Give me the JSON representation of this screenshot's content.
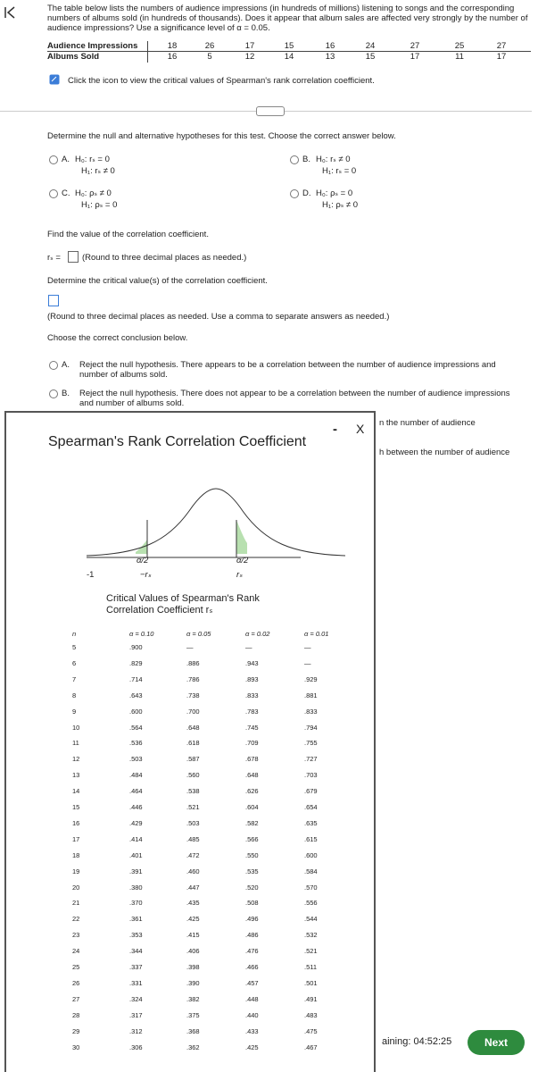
{
  "question": {
    "text": "The table below lists the numbers of audience impressions (in hundreds of millions) listening to songs and the corresponding numbers of albums sold (in hundreds of thousands). Does it appear that album sales are affected very strongly by the number of audience impressions? Use a significance level of α = 0.05.",
    "table": [
      {
        "label": "Audience Impressions",
        "values": [
          18,
          26,
          17,
          15,
          16,
          24,
          27,
          25,
          27
        ]
      },
      {
        "label": "Albums Sold",
        "values": [
          16,
          5,
          12,
          14,
          13,
          15,
          17,
          11,
          17
        ]
      }
    ],
    "icon_note": "Click the icon to view the critical values of Spearman's rank correlation coefficient."
  },
  "hypotheses": {
    "prompt": "Determine the null and alternative hypotheses for this test. Choose the correct answer below.",
    "options": [
      {
        "letter": "A.",
        "h0": "H₀: rₛ = 0",
        "h1": "H₁: rₛ ≠ 0"
      },
      {
        "letter": "B.",
        "h0": "H₀: rₛ ≠ 0",
        "h1": "H₁: rₛ = 0"
      },
      {
        "letter": "C.",
        "h0": "H₀: ρₛ ≠ 0",
        "h1": "H₁: ρₛ = 0"
      },
      {
        "letter": "D.",
        "h0": "H₀: ρₛ = 0",
        "h1": "H₁: ρₛ ≠ 0"
      }
    ]
  },
  "correlation": {
    "prompt": "Find the value of the correlation coefficient.",
    "label": "rₛ =",
    "note": "(Round to three decimal places as needed.)"
  },
  "critical": {
    "prompt": "Determine the critical value(s) of the correlation coefficient.",
    "note": "(Round to three decimal places as needed. Use a comma to separate answers as needed.)"
  },
  "conclusion": {
    "prompt": "Choose the correct conclusion below.",
    "options": [
      {
        "letter": "A.",
        "text": "Reject the null hypothesis. There appears to be a correlation between the number of audience impressions and number of albums sold."
      },
      {
        "letter": "B.",
        "text": "Reject the null hypothesis. There does not appear to be a correlation between the number of audience impressions and number of albums sold."
      }
    ],
    "fragments": [
      "n the number of audience",
      "h between the number of audience"
    ]
  },
  "popup": {
    "title": "Spearman's Rank Correlation Coefficient",
    "minimize": "-",
    "close": "X",
    "figure": {
      "left_tail": "α/2",
      "right_tail": "α/2",
      "min": "-1",
      "neg": "−rₛ",
      "pos": "rₛ",
      "max": "1"
    },
    "table": {
      "title": "Critical Values of Spearman's Rank Correlation Coefficient rₛ",
      "headers": [
        "n",
        "α = 0.10",
        "α = 0.05",
        "α = 0.02",
        "α = 0.01"
      ],
      "rows": [
        [
          "5",
          ".900",
          "—",
          "—",
          "—"
        ],
        [
          "6",
          ".829",
          ".886",
          ".943",
          "—"
        ],
        [
          "7",
          ".714",
          ".786",
          ".893",
          ".929"
        ],
        [
          "8",
          ".643",
          ".738",
          ".833",
          ".881"
        ],
        [
          "9",
          ".600",
          ".700",
          ".783",
          ".833"
        ],
        [
          "10",
          ".564",
          ".648",
          ".745",
          ".794"
        ],
        [
          "11",
          ".536",
          ".618",
          ".709",
          ".755"
        ],
        [
          "12",
          ".503",
          ".587",
          ".678",
          ".727"
        ],
        [
          "13",
          ".484",
          ".560",
          ".648",
          ".703"
        ],
        [
          "14",
          ".464",
          ".538",
          ".626",
          ".679"
        ],
        [
          "15",
          ".446",
          ".521",
          ".604",
          ".654"
        ],
        [
          "16",
          ".429",
          ".503",
          ".582",
          ".635"
        ],
        [
          "17",
          ".414",
          ".485",
          ".566",
          ".615"
        ],
        [
          "18",
          ".401",
          ".472",
          ".550",
          ".600"
        ],
        [
          "19",
          ".391",
          ".460",
          ".535",
          ".584"
        ],
        [
          "20",
          ".380",
          ".447",
          ".520",
          ".570"
        ],
        [
          "21",
          ".370",
          ".435",
          ".508",
          ".556"
        ],
        [
          "22",
          ".361",
          ".425",
          ".496",
          ".544"
        ],
        [
          "23",
          ".353",
          ".415",
          ".486",
          ".532"
        ],
        [
          "24",
          ".344",
          ".406",
          ".476",
          ".521"
        ],
        [
          "25",
          ".337",
          ".398",
          ".466",
          ".511"
        ],
        [
          "26",
          ".331",
          ".390",
          ".457",
          ".501"
        ],
        [
          "27",
          ".324",
          ".382",
          ".448",
          ".491"
        ],
        [
          "28",
          ".317",
          ".375",
          ".440",
          ".483"
        ],
        [
          "29",
          ".312",
          ".368",
          ".433",
          ".475"
        ],
        [
          "30",
          ".306",
          ".362",
          ".425",
          ".467"
        ]
      ]
    }
  },
  "footer": {
    "timer": "aining: 04:52:25",
    "next": "Next"
  }
}
